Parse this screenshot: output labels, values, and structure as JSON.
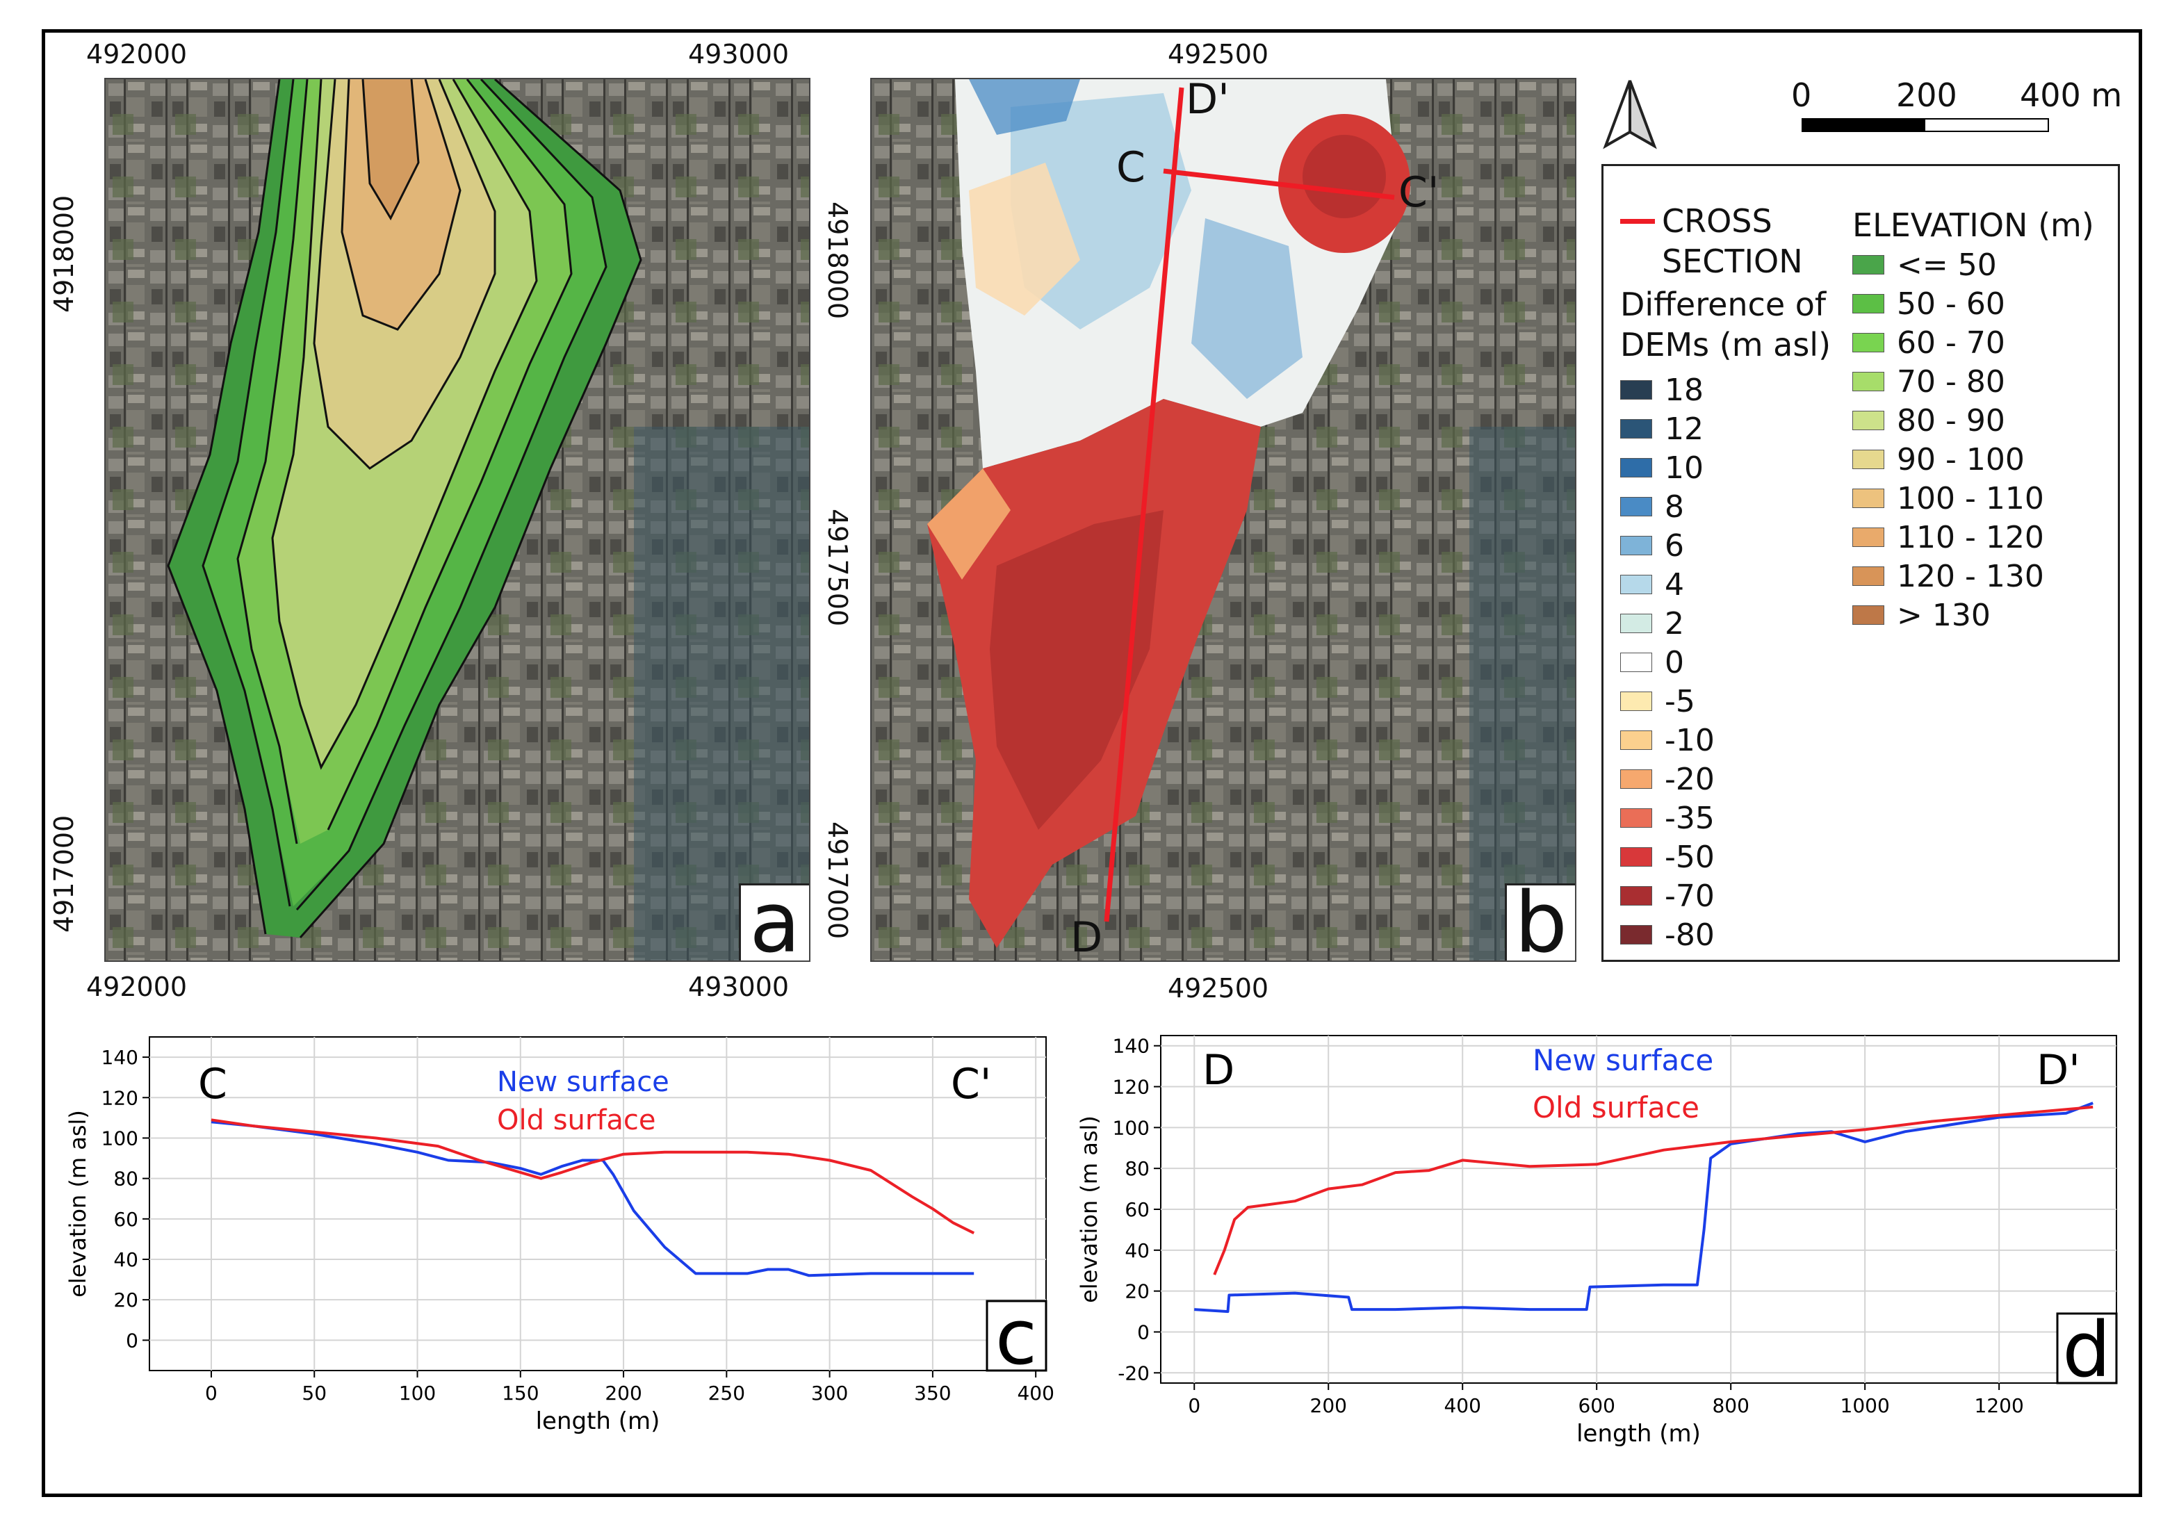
{
  "panel_a": {
    "letter": "a",
    "x_top_left": "492000",
    "x_top_right": "493000",
    "x_bottom_left": "492000",
    "x_bottom_right": "493000",
    "y_upper": "4918000",
    "y_lower": "4917000"
  },
  "panel_b": {
    "letter": "b",
    "x_top": "492500",
    "x_bottom": "492500",
    "y_upper": "4918000",
    "y_middle": "4917500",
    "y_lower": "4917000",
    "labels": {
      "c": "C",
      "c_prime": "C'",
      "d": "D",
      "d_prime": "D'"
    }
  },
  "north_arrow": "north-arrow",
  "scale_bar": {
    "t0": "0",
    "t1": "200",
    "t2": "400 m"
  },
  "legend": {
    "cross_section_line1": "CROSS",
    "cross_section_line2": "SECTION",
    "cross_section_color": "#e8202a",
    "diff_title_line1": "Difference of",
    "diff_title_line2": "DEMs (m asl)",
    "diff_items": [
      {
        "label": "18",
        "color": "#283e52"
      },
      {
        "label": "12",
        "color": "#2b5577"
      },
      {
        "label": "10",
        "color": "#2e6da8"
      },
      {
        "label": "8",
        "color": "#4a8bc5"
      },
      {
        "label": "6",
        "color": "#7eb3d8"
      },
      {
        "label": "4",
        "color": "#b6d9ea"
      },
      {
        "label": "2",
        "color": "#d3ebe4"
      },
      {
        "label": "0",
        "color": "#ffffff"
      },
      {
        "label": "-5",
        "color": "#fdeab0"
      },
      {
        "label": "-10",
        "color": "#fbd08e"
      },
      {
        "label": "-20",
        "color": "#f6a86e"
      },
      {
        "label": "-35",
        "color": "#ea6e57"
      },
      {
        "label": "-50",
        "color": "#d8383a"
      },
      {
        "label": "-70",
        "color": "#a92e31"
      },
      {
        "label": "-80",
        "color": "#7a2a2e"
      }
    ],
    "elev_title": "ELEVATION (m)",
    "elev_items": [
      {
        "label": "<= 50",
        "color": "#4aa54a"
      },
      {
        "label": "50 - 60",
        "color": "#5cbf45"
      },
      {
        "label": "60 - 70",
        "color": "#79d450"
      },
      {
        "label": "70 - 80",
        "color": "#a7dd6a"
      },
      {
        "label": "80 - 90",
        "color": "#cde28a"
      },
      {
        "label": "90 - 100",
        "color": "#e6d88e"
      },
      {
        "label": "100 - 110",
        "color": "#edc27e"
      },
      {
        "label": "110 - 120",
        "color": "#e9aa6b"
      },
      {
        "label": "120 - 130",
        "color": "#d89458"
      },
      {
        "label": "> 130",
        "color": "#be7848"
      }
    ]
  },
  "chart_data": [
    {
      "type": "line",
      "panel": "c",
      "xlabel": "length (m)",
      "ylabel": "elevation (m asl)",
      "xlim": [
        -30,
        405
      ],
      "ylim": [
        -15,
        150
      ],
      "xticks": [
        0,
        50,
        100,
        150,
        200,
        250,
        300,
        350,
        400
      ],
      "yticks": [
        0,
        20,
        40,
        60,
        80,
        100,
        120,
        140
      ],
      "start_label": "C",
      "end_label": "C'",
      "series": [
        {
          "name": "New surface",
          "color": "#1a3ee8",
          "x": [
            0,
            20,
            50,
            80,
            100,
            115,
            135,
            150,
            160,
            170,
            180,
            190,
            195,
            205,
            220,
            235,
            260,
            270,
            280,
            290,
            320,
            350,
            370
          ],
          "y": [
            108,
            106,
            102,
            97,
            93,
            89,
            88,
            85,
            82,
            86,
            89,
            89,
            82,
            64,
            46,
            33,
            33,
            35,
            35,
            32,
            33,
            33,
            33
          ]
        },
        {
          "name": "Old surface",
          "color": "#ec2027",
          "x": [
            0,
            20,
            50,
            80,
            110,
            130,
            150,
            160,
            170,
            185,
            200,
            220,
            260,
            280,
            300,
            320,
            340,
            350,
            360,
            370
          ],
          "y": [
            109,
            106,
            103,
            100,
            96,
            89,
            83,
            80,
            83,
            88,
            92,
            93,
            93,
            92,
            89,
            84,
            71,
            65,
            58,
            53
          ]
        }
      ]
    },
    {
      "type": "line",
      "panel": "d",
      "xlabel": "length (m)",
      "ylabel": "elevation (m asl)",
      "xlim": [
        -50,
        1375
      ],
      "ylim": [
        -25,
        145
      ],
      "xticks": [
        0,
        200,
        400,
        600,
        800,
        1000,
        1200
      ],
      "yticks": [
        -20,
        0,
        20,
        40,
        60,
        80,
        100,
        120,
        140
      ],
      "start_label": "D",
      "end_label": "D'",
      "series": [
        {
          "name": "New surface",
          "color": "#1a3ee8",
          "x": [
            0,
            50,
            52,
            150,
            230,
            235,
            300,
            400,
            500,
            585,
            590,
            700,
            750,
            760,
            770,
            800,
            900,
            950,
            980,
            1000,
            1060,
            1100,
            1200,
            1300,
            1340
          ],
          "y": [
            11,
            10,
            18,
            19,
            17,
            11,
            11,
            12,
            11,
            11,
            22,
            23,
            23,
            50,
            85,
            92,
            97,
            98,
            95,
            93,
            98,
            100,
            105,
            107,
            112
          ]
        },
        {
          "name": "Old surface",
          "color": "#ec2027",
          "x": [
            30,
            45,
            60,
            80,
            150,
            200,
            250,
            300,
            350,
            400,
            500,
            600,
            700,
            800,
            900,
            1000,
            1100,
            1200,
            1340
          ],
          "y": [
            28,
            40,
            55,
            61,
            64,
            70,
            72,
            78,
            79,
            84,
            81,
            82,
            89,
            93,
            96,
            99,
            103,
            106,
            110
          ]
        }
      ]
    }
  ]
}
